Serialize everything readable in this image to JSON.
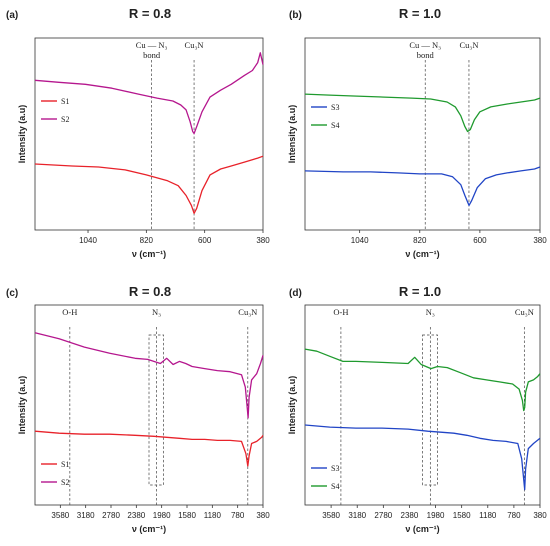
{
  "figure": {
    "panel_labels": [
      "(a)",
      "(b)",
      "(c)",
      "(d)"
    ]
  },
  "chart_data": [
    {
      "panel": "(a)",
      "type": "line",
      "title": "R = 0.8",
      "xlabel": "ν (cm⁻¹)",
      "ylabel": "Intensity (a.u)",
      "xlim": [
        1240,
        380
      ],
      "xticks": [
        1040,
        820,
        600,
        380
      ],
      "grid": false,
      "legend_position": "left",
      "annotations": [
        {
          "text": "Cu — N₃ bond",
          "x": 800
        },
        {
          "text": "Cu₃N",
          "x": 640
        }
      ],
      "series": [
        {
          "name": "S1",
          "color": "#e8222a",
          "points": [
            [
              1240,
              0.57
            ],
            [
              1100,
              0.55
            ],
            [
              1000,
              0.54
            ],
            [
              900,
              0.51
            ],
            [
              820,
              0.46
            ],
            [
              740,
              0.4
            ],
            [
              700,
              0.35
            ],
            [
              670,
              0.25
            ],
            [
              650,
              0.15
            ],
            [
              640,
              0.07
            ],
            [
              630,
              0.12
            ],
            [
              610,
              0.3
            ],
            [
              580,
              0.46
            ],
            [
              540,
              0.52
            ],
            [
              500,
              0.55
            ],
            [
              450,
              0.59
            ],
            [
              400,
              0.63
            ],
            [
              380,
              0.65
            ]
          ]
        },
        {
          "name": "S2",
          "color": "#b5178e",
          "points": [
            [
              1240,
              1.42
            ],
            [
              1150,
              1.4
            ],
            [
              1050,
              1.38
            ],
            [
              950,
              1.34
            ],
            [
              850,
              1.28
            ],
            [
              780,
              1.24
            ],
            [
              720,
              1.21
            ],
            [
              690,
              1.17
            ],
            [
              670,
              1.12
            ],
            [
              655,
              1.0
            ],
            [
              645,
              0.9
            ],
            [
              640,
              0.88
            ],
            [
              630,
              0.95
            ],
            [
              610,
              1.1
            ],
            [
              580,
              1.25
            ],
            [
              540,
              1.32
            ],
            [
              500,
              1.38
            ],
            [
              450,
              1.47
            ],
            [
              420,
              1.52
            ],
            [
              400,
              1.6
            ],
            [
              390,
              1.7
            ],
            [
              380,
              1.58
            ]
          ]
        }
      ]
    },
    {
      "panel": "(b)",
      "type": "line",
      "title": "R = 1.0",
      "xlabel": "ν (cm⁻¹)",
      "ylabel": "Intensity (a.u)",
      "xlim": [
        1240,
        380
      ],
      "xticks": [
        1040,
        820,
        600,
        380
      ],
      "grid": false,
      "legend_position": "left",
      "annotations": [
        {
          "text": "Cu — N₃ bond",
          "x": 800
        },
        {
          "text": "Cu₃N",
          "x": 640
        }
      ],
      "series": [
        {
          "name": "S3",
          "color": "#2145c6",
          "points": [
            [
              1240,
              0.5
            ],
            [
              1100,
              0.49
            ],
            [
              1000,
              0.49
            ],
            [
              900,
              0.48
            ],
            [
              820,
              0.47
            ],
            [
              740,
              0.47
            ],
            [
              700,
              0.44
            ],
            [
              670,
              0.36
            ],
            [
              655,
              0.25
            ],
            [
              640,
              0.15
            ],
            [
              630,
              0.2
            ],
            [
              610,
              0.33
            ],
            [
              580,
              0.42
            ],
            [
              540,
              0.46
            ],
            [
              500,
              0.48
            ],
            [
              450,
              0.5
            ],
            [
              400,
              0.52
            ],
            [
              380,
              0.54
            ]
          ]
        },
        {
          "name": "S4",
          "color": "#1f9a2e",
          "points": [
            [
              1240,
              1.28
            ],
            [
              1150,
              1.27
            ],
            [
              1050,
              1.26
            ],
            [
              950,
              1.25
            ],
            [
              850,
              1.24
            ],
            [
              780,
              1.23
            ],
            [
              720,
              1.2
            ],
            [
              690,
              1.15
            ],
            [
              670,
              1.06
            ],
            [
              655,
              0.95
            ],
            [
              645,
              0.9
            ],
            [
              635,
              0.92
            ],
            [
              620,
              1.02
            ],
            [
              600,
              1.1
            ],
            [
              560,
              1.15
            ],
            [
              500,
              1.18
            ],
            [
              450,
              1.2
            ],
            [
              400,
              1.22
            ],
            [
              380,
              1.24
            ]
          ]
        }
      ]
    },
    {
      "panel": "(c)",
      "type": "line",
      "title": "R = 0.8",
      "xlabel": "ν (cm⁻¹)",
      "ylabel": "Intensity (a.u)",
      "xlim": [
        3980,
        380
      ],
      "xticks": [
        3580,
        3180,
        2780,
        2380,
        1980,
        1580,
        1180,
        780,
        380
      ],
      "grid": false,
      "legend_position": "bottom-left",
      "annotations": [
        {
          "text": "O-H",
          "x": 3430
        },
        {
          "text": "N₃",
          "x": 2060
        },
        {
          "text": "Cu₃N",
          "x": 620
        }
      ],
      "series": [
        {
          "name": "S1",
          "color": "#e8222a",
          "points": [
            [
              3980,
              0.62
            ],
            [
              3600,
              0.6
            ],
            [
              3200,
              0.59
            ],
            [
              2800,
              0.59
            ],
            [
              2400,
              0.58
            ],
            [
              2100,
              0.57
            ],
            [
              1900,
              0.56
            ],
            [
              1700,
              0.55
            ],
            [
              1500,
              0.54
            ],
            [
              1300,
              0.54
            ],
            [
              1100,
              0.53
            ],
            [
              900,
              0.53
            ],
            [
              720,
              0.52
            ],
            [
              650,
              0.4
            ],
            [
              620,
              0.28
            ],
            [
              600,
              0.38
            ],
            [
              560,
              0.5
            ],
            [
              480,
              0.52
            ],
            [
              400,
              0.56
            ],
            [
              380,
              0.58
            ]
          ]
        },
        {
          "name": "S2",
          "color": "#b5178e",
          "points": [
            [
              3980,
              1.58
            ],
            [
              3600,
              1.52
            ],
            [
              3200,
              1.44
            ],
            [
              2800,
              1.38
            ],
            [
              2400,
              1.33
            ],
            [
              2200,
              1.32
            ],
            [
              2000,
              1.28
            ],
            [
              1900,
              1.33
            ],
            [
              1800,
              1.27
            ],
            [
              1700,
              1.3
            ],
            [
              1600,
              1.28
            ],
            [
              1500,
              1.25
            ],
            [
              1300,
              1.23
            ],
            [
              1100,
              1.21
            ],
            [
              900,
              1.2
            ],
            [
              720,
              1.17
            ],
            [
              660,
              1.05
            ],
            [
              630,
              0.85
            ],
            [
              615,
              0.75
            ],
            [
              600,
              0.95
            ],
            [
              560,
              1.12
            ],
            [
              480,
              1.18
            ],
            [
              420,
              1.28
            ],
            [
              380,
              1.36
            ]
          ]
        }
      ]
    },
    {
      "panel": "(d)",
      "type": "line",
      "title": "R = 1.0",
      "xlabel": "ν (cm⁻¹)",
      "ylabel": "Intensity (a.u)",
      "xlim": [
        3980,
        380
      ],
      "xticks": [
        3580,
        3180,
        2780,
        2380,
        1980,
        1580,
        1180,
        780,
        380
      ],
      "grid": false,
      "legend_position": "bottom-left",
      "annotations": [
        {
          "text": "O-H",
          "x": 3430
        },
        {
          "text": "N₃",
          "x": 2060
        },
        {
          "text": "Cu₃N",
          "x": 620
        }
      ],
      "series": [
        {
          "name": "S3",
          "color": "#2145c6",
          "points": [
            [
              3980,
              0.68
            ],
            [
              3600,
              0.66
            ],
            [
              3200,
              0.65
            ],
            [
              2800,
              0.65
            ],
            [
              2400,
              0.64
            ],
            [
              2100,
              0.62
            ],
            [
              1900,
              0.61
            ],
            [
              1700,
              0.6
            ],
            [
              1500,
              0.58
            ],
            [
              1300,
              0.55
            ],
            [
              1100,
              0.53
            ],
            [
              900,
              0.52
            ],
            [
              720,
              0.5
            ],
            [
              660,
              0.35
            ],
            [
              630,
              0.15
            ],
            [
              615,
              0.05
            ],
            [
              600,
              0.25
            ],
            [
              560,
              0.45
            ],
            [
              480,
              0.5
            ],
            [
              420,
              0.53
            ],
            [
              380,
              0.55
            ]
          ]
        },
        {
          "name": "S4",
          "color": "#1f9a2e",
          "points": [
            [
              3980,
              1.42
            ],
            [
              3800,
              1.4
            ],
            [
              3600,
              1.35
            ],
            [
              3400,
              1.3
            ],
            [
              3200,
              1.3
            ],
            [
              2800,
              1.29
            ],
            [
              2400,
              1.28
            ],
            [
              2300,
              1.34
            ],
            [
              2200,
              1.27
            ],
            [
              2050,
              1.23
            ],
            [
              1950,
              1.25
            ],
            [
              1800,
              1.24
            ],
            [
              1600,
              1.19
            ],
            [
              1400,
              1.14
            ],
            [
              1200,
              1.12
            ],
            [
              1000,
              1.1
            ],
            [
              800,
              1.08
            ],
            [
              700,
              1.03
            ],
            [
              650,
              0.92
            ],
            [
              630,
              0.82
            ],
            [
              615,
              0.85
            ],
            [
              600,
              1.0
            ],
            [
              560,
              1.1
            ],
            [
              480,
              1.12
            ],
            [
              420,
              1.15
            ],
            [
              380,
              1.18
            ]
          ]
        }
      ]
    }
  ]
}
